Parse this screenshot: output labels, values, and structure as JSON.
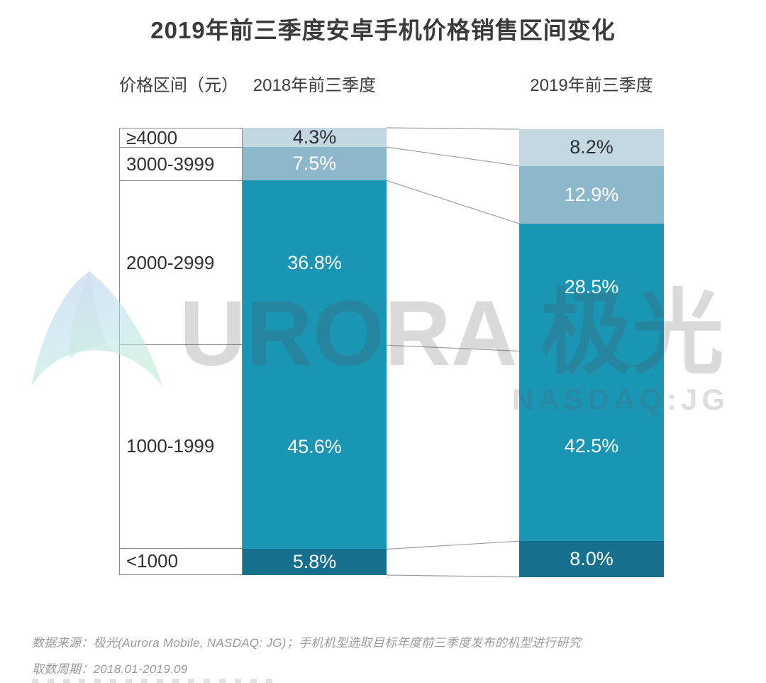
{
  "title": "2019年前三季度安卓手机价格销售区间变化",
  "headers": {
    "price_range": "价格区间（元）",
    "col_2018": "2018年前三季度",
    "col_2019": "2019年前三季度"
  },
  "chart_data": {
    "type": "bar",
    "subtype": "stacked-percentage-comparison",
    "title": "2019年前三季度安卓手机价格销售区间变化",
    "categories": [
      "≥4000",
      "3000-3999",
      "2000-2999",
      "1000-1999",
      "<1000"
    ],
    "series": [
      {
        "name": "2018年前三季度",
        "values": [
          4.3,
          7.5,
          36.8,
          45.6,
          5.8
        ]
      },
      {
        "name": "2019年前三季度",
        "values": [
          8.2,
          12.9,
          28.5,
          42.5,
          8.0
        ]
      }
    ],
    "value_labels": {
      "s2018": [
        "4.3%",
        "7.5%",
        "36.8%",
        "45.6%",
        "5.8%"
      ],
      "s2019": [
        "8.2%",
        "12.9%",
        "28.5%",
        "42.5%",
        "8.0%"
      ]
    },
    "unit": "%",
    "ylim": [
      0,
      100
    ],
    "grid": false,
    "legend_position": "top-as-column-headers",
    "segment_colors": [
      "#c4d8e2",
      "#8db8cb",
      "#1b95b4",
      "#1b95b4",
      "#166f8c"
    ],
    "segment_label_colors": [
      "#2b2f33",
      "#ffffff",
      "#ffffff",
      "#ffffff",
      "#ffffff"
    ],
    "connector_line_color": "#9aa0a4",
    "table_border_color": "#82888e"
  },
  "watermark": {
    "brand": "URORA 极光",
    "ticker": "NASDAQ:JG",
    "logo": "aurora-swoosh"
  },
  "footer": {
    "source": "数据来源：极光(Aurora Mobile, NASDAQ: JG)；手机机型选取目标年度前三季度发布的机型进行研究",
    "period": "取数周期：2018.01-2019.09"
  }
}
